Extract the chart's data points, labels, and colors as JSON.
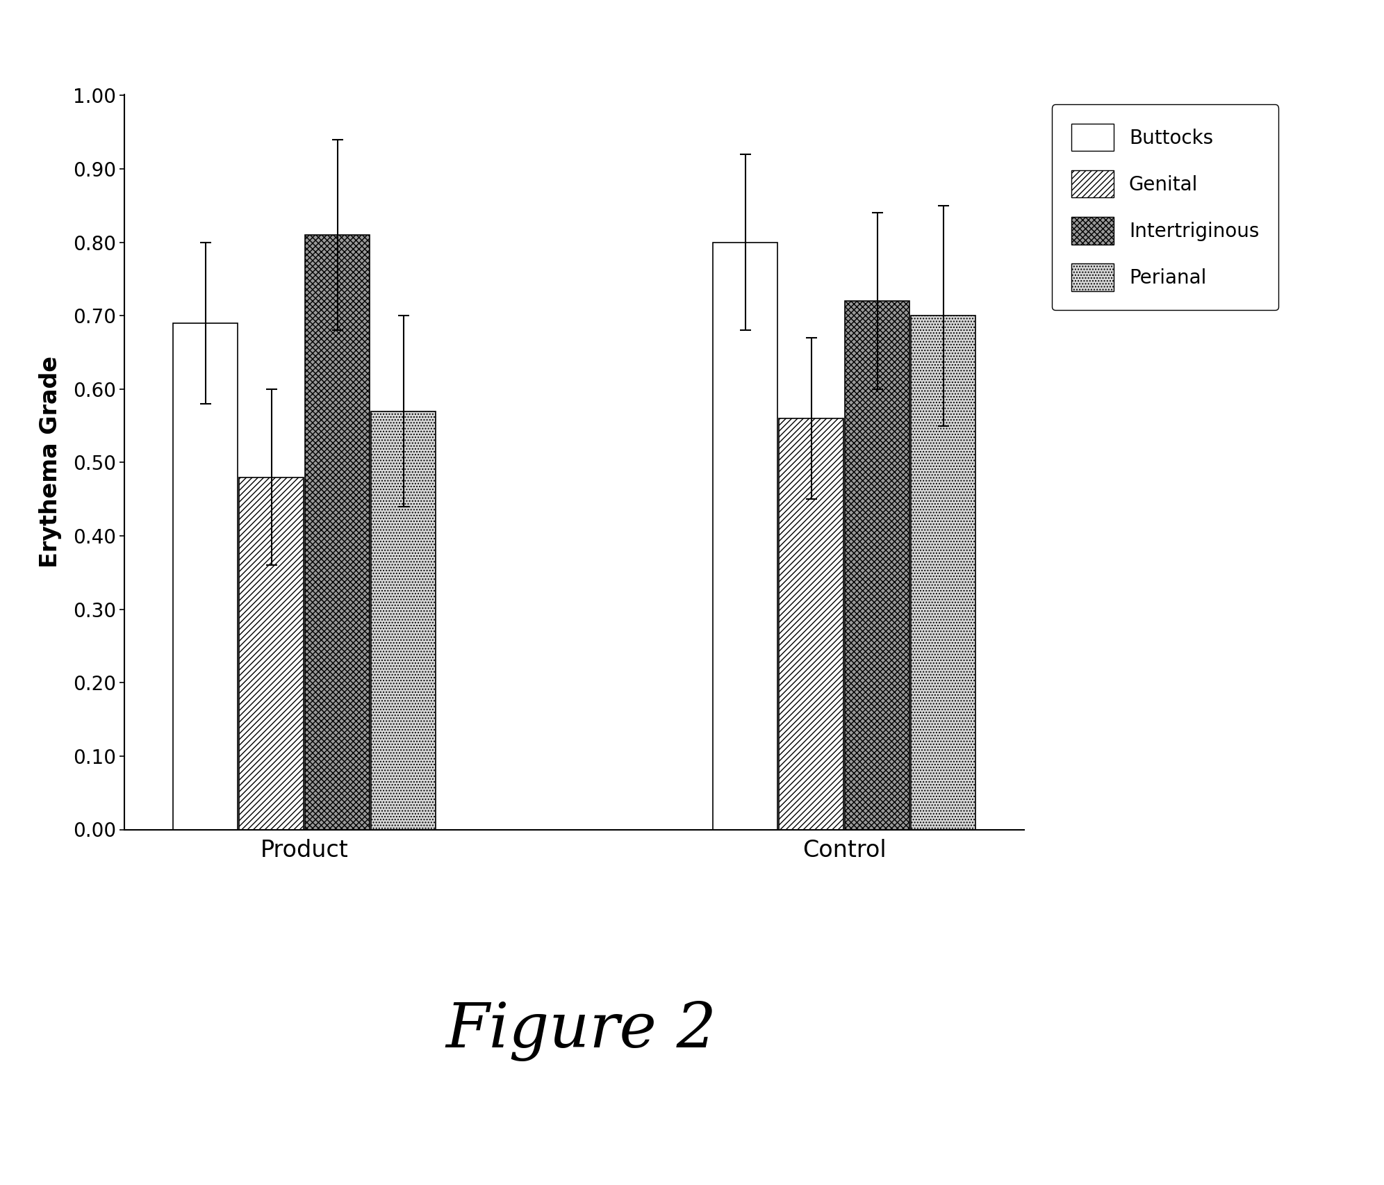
{
  "groups": [
    "Product",
    "Control"
  ],
  "categories": [
    "Buttocks",
    "Genital",
    "Intertriginous",
    "Perianal"
  ],
  "values": {
    "Product": [
      0.69,
      0.48,
      0.81,
      0.57
    ],
    "Control": [
      0.8,
      0.56,
      0.72,
      0.7
    ]
  },
  "errors": {
    "Product": [
      0.11,
      0.12,
      0.13,
      0.13
    ],
    "Control": [
      0.12,
      0.11,
      0.12,
      0.15
    ]
  },
  "ylabel": "Erythema Grade",
  "ylim": [
    0.0,
    1.0
  ],
  "yticks": [
    0.0,
    0.1,
    0.2,
    0.3,
    0.4,
    0.5,
    0.6,
    0.7,
    0.8,
    0.9,
    1.0
  ],
  "figure_label": "Figure 2",
  "background_color": "#ffffff",
  "group_positions": [
    1.0,
    2.8
  ],
  "bar_width": 0.22,
  "legend_labels": [
    "Buttocks",
    "Genital",
    "Intertriginous",
    "Perianal"
  ]
}
